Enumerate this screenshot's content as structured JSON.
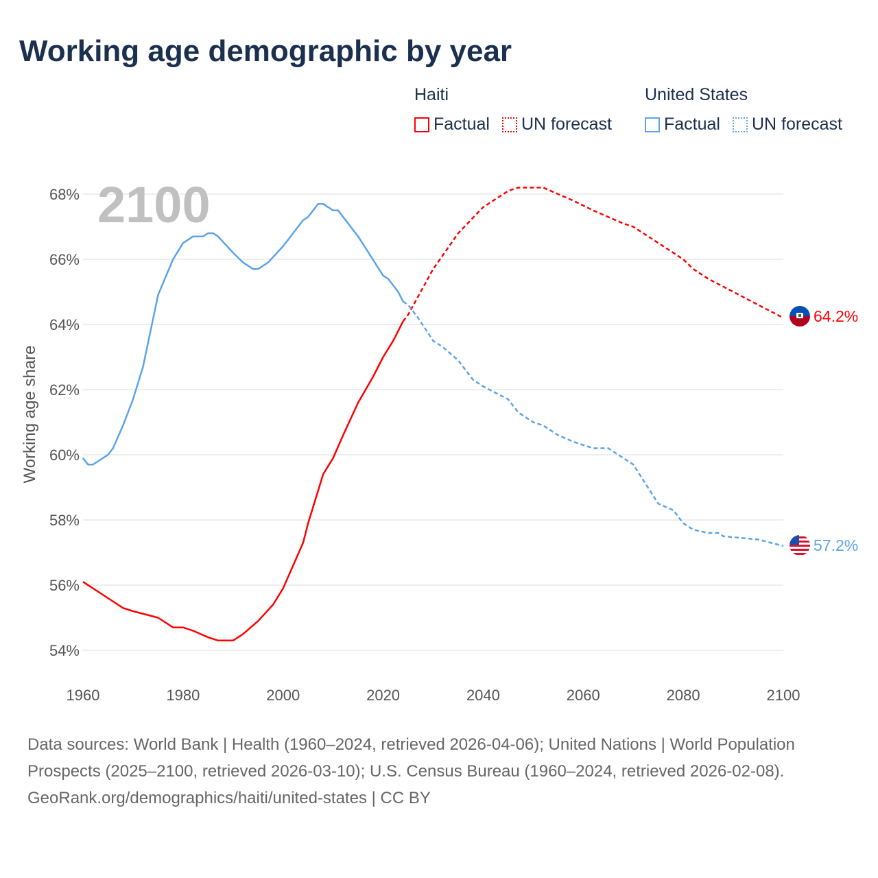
{
  "title": "Working age demographic by year",
  "legend": {
    "groups": [
      {
        "name": "Haiti",
        "factual_label": "Factual",
        "forecast_label": "UN forecast",
        "color": "#ff0000"
      },
      {
        "name": "United States",
        "factual_label": "Factual",
        "forecast_label": "UN forecast",
        "color": "#5ba3e8"
      }
    ]
  },
  "footer": {
    "sources": "Data sources: World Bank | Health (1960–2024, retrieved 2026-04-06); United Nations | World Population Prospects (2025–2100, retrieved 2026-03-10); U.S. Census Bureau (1960–2024, retrieved 2026-02-08).",
    "credit": "GeoRank.org/demographics/haiti/united-states | CC BY"
  },
  "chart_data": {
    "type": "line",
    "title": "Working age demographic by year",
    "year_label": "2100",
    "xlabel": "",
    "ylabel": "Working age share",
    "xlim": [
      1960,
      2100
    ],
    "ylim": [
      54,
      68
    ],
    "x_ticks": [
      1960,
      1980,
      2000,
      2020,
      2040,
      2060,
      2080,
      2100
    ],
    "x_tick_labels": [
      "1960",
      "1980",
      "2000",
      "2020",
      "2040",
      "2060",
      "2080",
      "2100"
    ],
    "y_ticks": [
      54,
      56,
      58,
      60,
      62,
      64,
      66,
      68
    ],
    "y_tick_labels": [
      "54%",
      "56%",
      "58%",
      "60%",
      "62%",
      "64%",
      "66%",
      "68%"
    ],
    "grid": true,
    "forecast_start": 2024,
    "series": [
      {
        "name": "Haiti",
        "color": "#ff0000",
        "end_label": "64.2%",
        "flag": "haiti-flag",
        "points": [
          [
            1960,
            56.1
          ],
          [
            1965,
            55.6
          ],
          [
            1968,
            55.3
          ],
          [
            1970,
            55.2
          ],
          [
            1975,
            55.0
          ],
          [
            1978,
            54.7
          ],
          [
            1980,
            54.7
          ],
          [
            1982,
            54.6
          ],
          [
            1985,
            54.4
          ],
          [
            1987,
            54.3
          ],
          [
            1990,
            54.3
          ],
          [
            1992,
            54.5
          ],
          [
            1995,
            54.9
          ],
          [
            1998,
            55.4
          ],
          [
            2000,
            55.9
          ],
          [
            2002,
            56.6
          ],
          [
            2004,
            57.3
          ],
          [
            2005,
            57.9
          ],
          [
            2008,
            59.4
          ],
          [
            2010,
            59.9
          ],
          [
            2012,
            60.6
          ],
          [
            2015,
            61.6
          ],
          [
            2018,
            62.4
          ],
          [
            2020,
            63.0
          ],
          [
            2022,
            63.5
          ],
          [
            2024,
            64.1
          ],
          [
            2025,
            64.3
          ],
          [
            2030,
            65.7
          ],
          [
            2035,
            66.8
          ],
          [
            2040,
            67.6
          ],
          [
            2045,
            68.1
          ],
          [
            2047,
            68.2
          ],
          [
            2052,
            68.2
          ],
          [
            2055,
            68.0
          ],
          [
            2058,
            67.8
          ],
          [
            2062,
            67.5
          ],
          [
            2065,
            67.3
          ],
          [
            2068,
            67.1
          ],
          [
            2070,
            67.0
          ],
          [
            2072,
            66.8
          ],
          [
            2075,
            66.5
          ],
          [
            2080,
            66.0
          ],
          [
            2082,
            65.7
          ],
          [
            2085,
            65.4
          ],
          [
            2090,
            65.0
          ],
          [
            2095,
            64.6
          ],
          [
            2100,
            64.2
          ]
        ]
      },
      {
        "name": "United States",
        "color": "#5ba3e8",
        "end_label": "57.2%",
        "flag": "us-flag",
        "points": [
          [
            1960,
            59.9
          ],
          [
            1961,
            59.7
          ],
          [
            1962,
            59.7
          ],
          [
            1965,
            60.0
          ],
          [
            1966,
            60.2
          ],
          [
            1968,
            60.9
          ],
          [
            1970,
            61.7
          ],
          [
            1972,
            62.7
          ],
          [
            1975,
            64.9
          ],
          [
            1978,
            66.0
          ],
          [
            1980,
            66.5
          ],
          [
            1982,
            66.7
          ],
          [
            1984,
            66.7
          ],
          [
            1985,
            66.8
          ],
          [
            1986,
            66.8
          ],
          [
            1987,
            66.7
          ],
          [
            1990,
            66.2
          ],
          [
            1992,
            65.9
          ],
          [
            1994,
            65.7
          ],
          [
            1995,
            65.7
          ],
          [
            1997,
            65.9
          ],
          [
            2000,
            66.4
          ],
          [
            2002,
            66.8
          ],
          [
            2004,
            67.2
          ],
          [
            2005,
            67.3
          ],
          [
            2007,
            67.7
          ],
          [
            2008,
            67.7
          ],
          [
            2010,
            67.5
          ],
          [
            2011,
            67.5
          ],
          [
            2015,
            66.7
          ],
          [
            2020,
            65.5
          ],
          [
            2021,
            65.4
          ],
          [
            2023,
            65.0
          ],
          [
            2024,
            64.7
          ],
          [
            2025,
            64.6
          ],
          [
            2027,
            64.2
          ],
          [
            2030,
            63.5
          ],
          [
            2032,
            63.3
          ],
          [
            2035,
            62.9
          ],
          [
            2038,
            62.3
          ],
          [
            2040,
            62.1
          ],
          [
            2045,
            61.7
          ],
          [
            2047,
            61.3
          ],
          [
            2050,
            61.0
          ],
          [
            2052,
            60.9
          ],
          [
            2055,
            60.6
          ],
          [
            2058,
            60.4
          ],
          [
            2060,
            60.3
          ],
          [
            2062,
            60.2
          ],
          [
            2065,
            60.2
          ],
          [
            2068,
            59.9
          ],
          [
            2070,
            59.7
          ],
          [
            2075,
            58.5
          ],
          [
            2078,
            58.3
          ],
          [
            2080,
            57.9
          ],
          [
            2082,
            57.7
          ],
          [
            2085,
            57.6
          ],
          [
            2087,
            57.6
          ],
          [
            2088,
            57.5
          ],
          [
            2095,
            57.4
          ],
          [
            2100,
            57.2
          ]
        ]
      }
    ]
  }
}
